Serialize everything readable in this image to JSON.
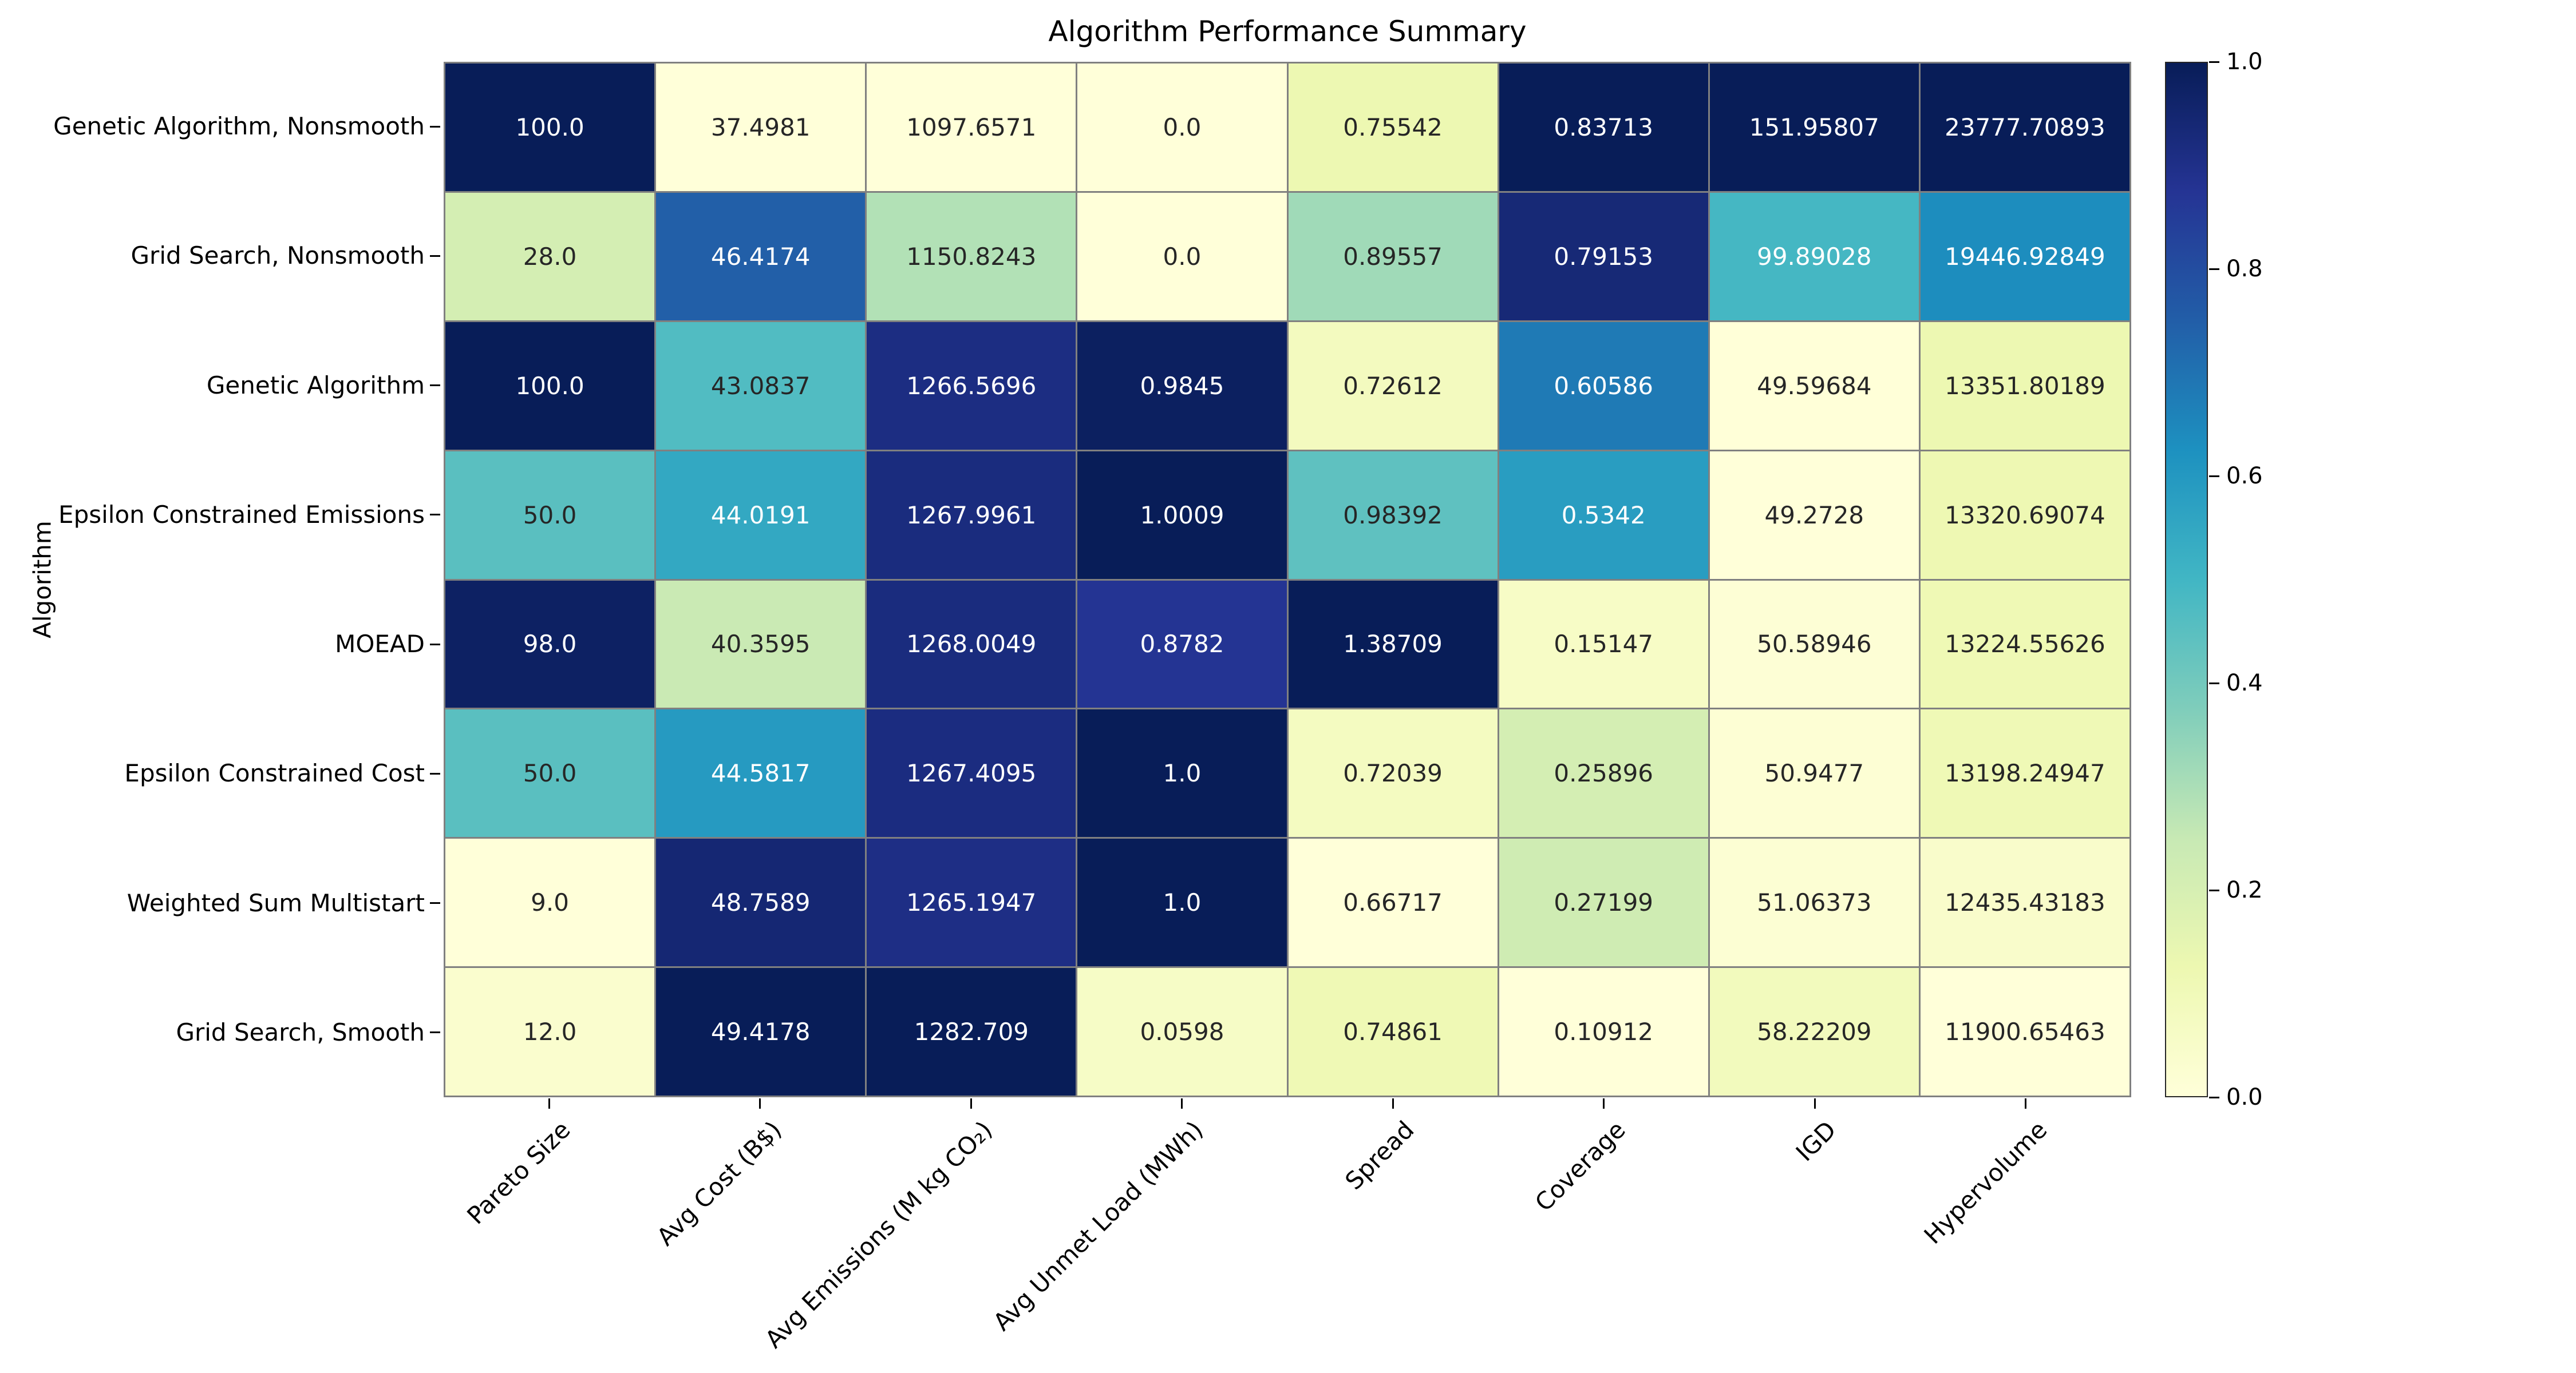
{
  "title": "Algorithm Performance Summary",
  "y_axis_label": "Algorithm",
  "chart_data": {
    "type": "heatmap",
    "colormap": "YlGnBu",
    "normalization": "per-column min-max",
    "background_color": "#ffffff",
    "gridline_color": "#808080",
    "annotation_dark_color": "#262626",
    "annotation_light_color": "#ffffff",
    "rows": [
      "Genetic Algorithm, Nonsmooth",
      "Grid Search, Nonsmooth",
      "Genetic Algorithm",
      "Epsilon Constrained Emissions",
      "MOEAD",
      "Epsilon Constrained Cost",
      "Weighted Sum Multistart",
      "Grid Search, Smooth"
    ],
    "columns": [
      "Pareto Size",
      "Avg Cost (B$)",
      "Avg Emissions (M kg CO₂)",
      "Avg Unmet Load (MWh)",
      "Spread",
      "Coverage",
      "IGD",
      "Hypervolume"
    ],
    "values": [
      [
        "100.0",
        "37.4981",
        "1097.6571",
        "0.0",
        "0.75542",
        "0.83713",
        "151.95807",
        "23777.70893"
      ],
      [
        "28.0",
        "46.4174",
        "1150.8243",
        "0.0",
        "0.89557",
        "0.79153",
        "99.89028",
        "19446.92849"
      ],
      [
        "100.0",
        "43.0837",
        "1266.5696",
        "0.9845",
        "0.72612",
        "0.60586",
        "49.59684",
        "13351.80189"
      ],
      [
        "50.0",
        "44.0191",
        "1267.9961",
        "1.0009",
        "0.98392",
        "0.5342",
        "49.2728",
        "13320.69074"
      ],
      [
        "98.0",
        "40.3595",
        "1268.0049",
        "0.8782",
        "1.38709",
        "0.15147",
        "50.58946",
        "13224.55626"
      ],
      [
        "50.0",
        "44.5817",
        "1267.4095",
        "1.0",
        "0.72039",
        "0.25896",
        "50.9477",
        "13198.24947"
      ],
      [
        "9.0",
        "48.7589",
        "1265.1947",
        "1.0",
        "0.66717",
        "0.27199",
        "51.06373",
        "12435.43183"
      ],
      [
        "12.0",
        "49.4178",
        "1282.709",
        "0.0598",
        "0.74861",
        "0.10912",
        "58.22209",
        "11900.65463"
      ]
    ],
    "colormap_stops": [
      "#ffffd9",
      "#edf8b1",
      "#c7e9b4",
      "#7fcdbb",
      "#41b6c4",
      "#1d91c0",
      "#225ea8",
      "#253494",
      "#081d58"
    ],
    "colorbar": {
      "min": 0.0,
      "max": 1.0,
      "ticks": [
        {
          "label": "0.0",
          "value": 0.0
        },
        {
          "label": "0.2",
          "value": 0.2
        },
        {
          "label": "0.4",
          "value": 0.4
        },
        {
          "label": "0.6",
          "value": 0.6
        },
        {
          "label": "0.8",
          "value": 0.8
        },
        {
          "label": "1.0",
          "value": 1.0
        }
      ]
    }
  }
}
